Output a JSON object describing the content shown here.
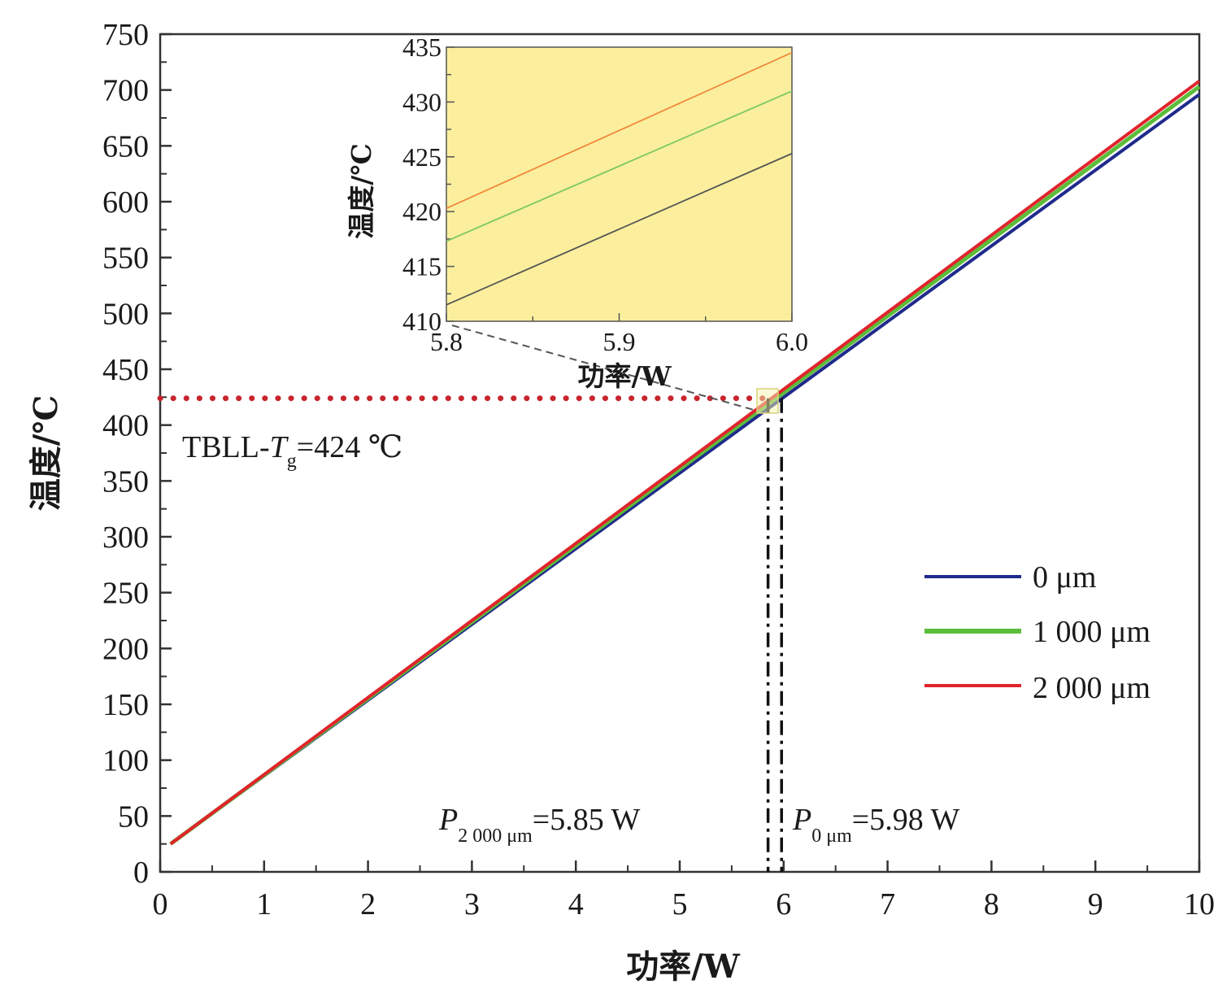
{
  "chart_data": {
    "type": "line",
    "xlabel": "功率/W",
    "ylabel": "温度/℃",
    "xlim": [
      0,
      10
    ],
    "ylim": [
      0,
      750
    ],
    "xticks": [
      "0",
      "1",
      "2",
      "3",
      "4",
      "5",
      "6",
      "7",
      "8",
      "9",
      "10"
    ],
    "yticks": [
      "0",
      "50",
      "100",
      "150",
      "200",
      "250",
      "300",
      "350",
      "400",
      "450",
      "500",
      "550",
      "600",
      "650",
      "700",
      "750"
    ],
    "grid": false,
    "legend_position": "bottom-right",
    "series": [
      {
        "name": "0 μm",
        "color": "#1f2a8c",
        "x": [
          0.1,
          10
        ],
        "y": [
          25,
          696
        ]
      },
      {
        "name": "1 000 μm",
        "color": "#5cbd3a",
        "x": [
          0.1,
          10
        ],
        "y": [
          25,
          703
        ]
      },
      {
        "name": "2 000 μm",
        "color": "#e0242c",
        "x": [
          0.1,
          10
        ],
        "y": [
          25,
          708
        ]
      }
    ],
    "annotations": {
      "tg_line": {
        "y": 424,
        "x_end": 5.85,
        "color": "#c8242c"
      },
      "tg_label": {
        "main": "TBLL-",
        "italic": "T",
        "sub": "g",
        "value": "=424 ℃"
      },
      "p2000_line_x": 5.85,
      "p0_line_x": 5.98,
      "p2000_label": {
        "italic": "P",
        "sub": "2 000 μm",
        "value": "=5.85 W"
      },
      "p0_label": {
        "italic": "P",
        "sub": "0 μm",
        "value": "=5.98 W"
      }
    },
    "inset": {
      "background": "#fbef9e",
      "xlim": [
        5.8,
        6.0
      ],
      "ylim": [
        410,
        435
      ],
      "xticks": [
        "5.8",
        "5.9",
        "6.0"
      ],
      "yticks": [
        "410",
        "415",
        "420",
        "425",
        "430",
        "435"
      ],
      "xlabel": "功率/W",
      "ylabel": "温度/℃",
      "series": [
        {
          "name": "0 μm",
          "color": "#555555",
          "x": [
            5.8,
            6.0
          ],
          "y": [
            411.5,
            425.3
          ]
        },
        {
          "name": "1 000 μm",
          "color": "#7cc860",
          "x": [
            5.8,
            6.0
          ],
          "y": [
            417.3,
            431.0
          ]
        },
        {
          "name": "2 000 μm",
          "color": "#f08a3a",
          "x": [
            5.8,
            6.0
          ],
          "y": [
            420.3,
            434.5
          ]
        }
      ]
    }
  }
}
